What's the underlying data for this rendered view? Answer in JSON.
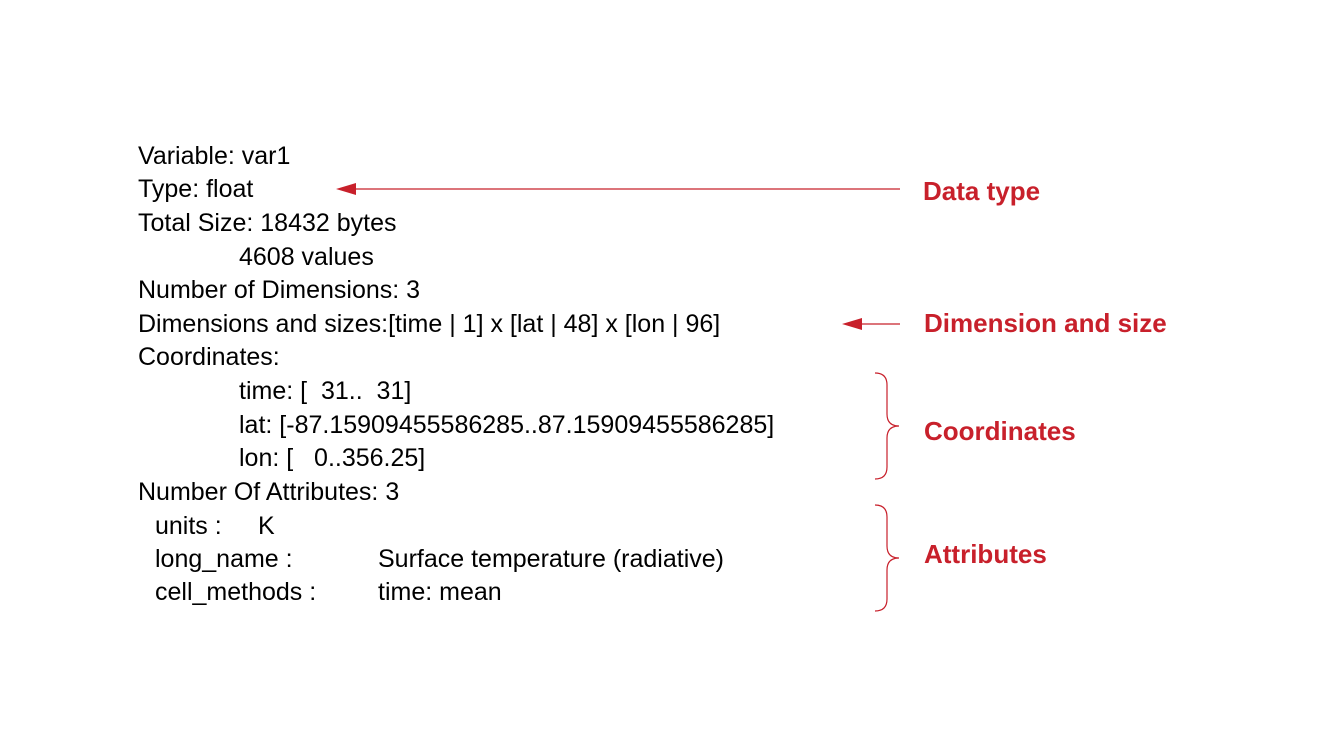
{
  "info_lines": {
    "variable": "Variable: var1",
    "type": "Type: float",
    "total_size": "Total Size: 18432 bytes",
    "values": "4608 values",
    "num_dims": "Number of Dimensions: 3",
    "dims_sizes": "Dimensions and sizes:[time | 1] x [lat | 48] x [lon | 96]",
    "coordinates_label": "Coordinates:",
    "coord_time": "time: [  31..  31]",
    "coord_lat": "lat: [-87.15909455586285..87.15909455586285]",
    "coord_lon": "lon: [   0..356.25]",
    "num_attrs": "Number Of Attributes: 3"
  },
  "attributes": [
    {
      "key": "units :",
      "value": "K"
    },
    {
      "key": "long_name :",
      "value": "Surface temperature (radiative)"
    },
    {
      "key": "cell_methods :",
      "value": "time: mean"
    }
  ],
  "annotations": {
    "data_type": "Data type",
    "dimension_size": "Dimension and size",
    "coordinates": "Coordinates",
    "attributes": "Attributes"
  },
  "colors": {
    "annotation": "#c8202b",
    "text": "#000000",
    "background": "#ffffff"
  }
}
